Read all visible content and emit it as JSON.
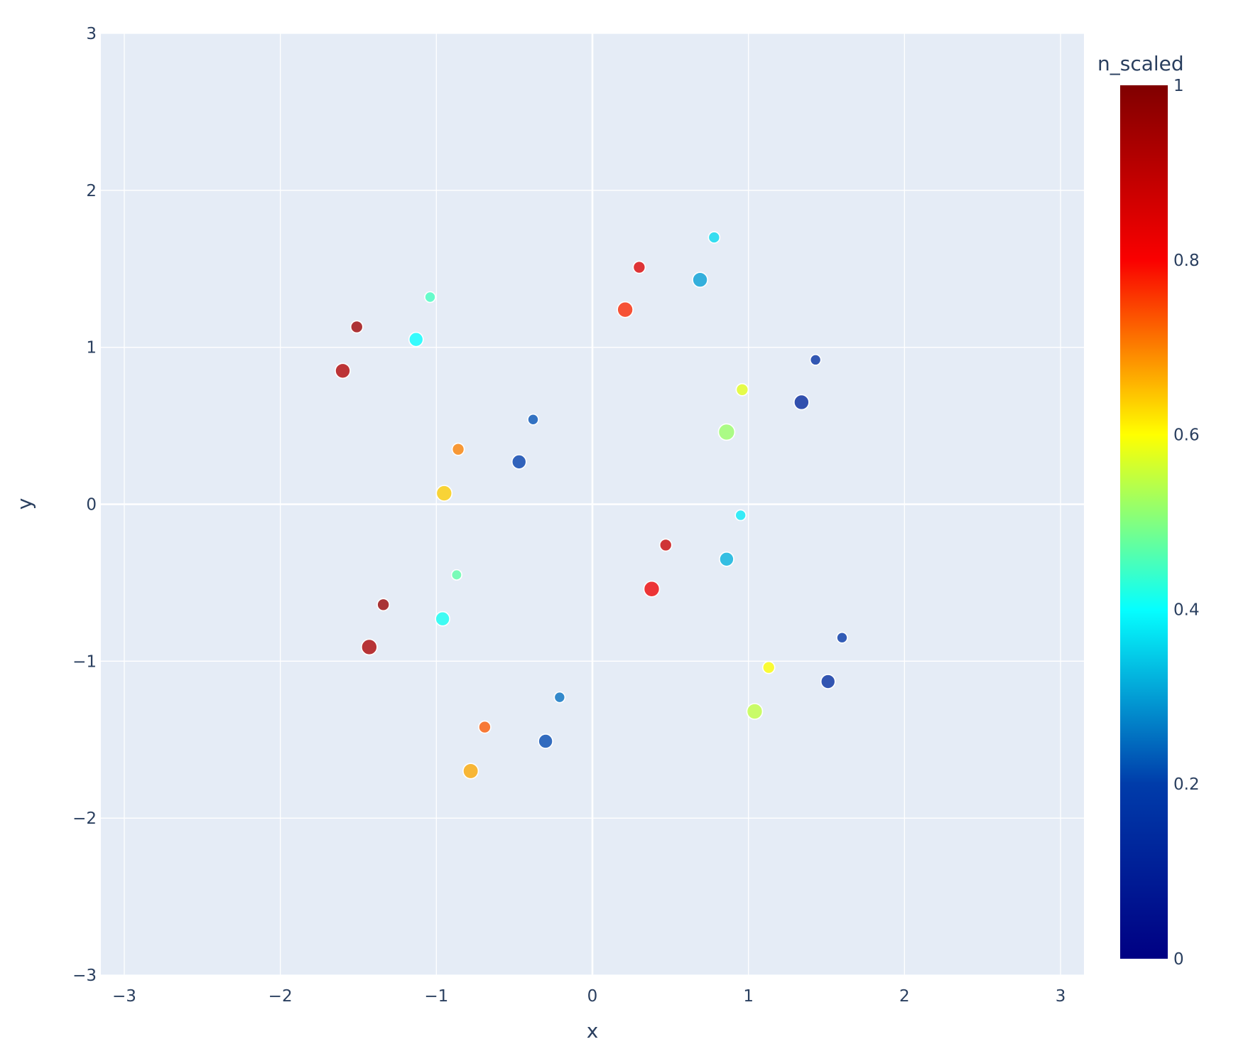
{
  "chart_data": {
    "type": "scatter",
    "xlabel": "x",
    "ylabel": "y",
    "xlim": [
      -3.15,
      3.15
    ],
    "ylim": [
      -3,
      3
    ],
    "xticks": [
      -3,
      -2,
      -1,
      0,
      1,
      2,
      3
    ],
    "yticks": [
      -3,
      -2,
      -1,
      0,
      1,
      2,
      3
    ],
    "xtick_labels": [
      "−3",
      "−2",
      "−1",
      "0",
      "1",
      "2",
      "3"
    ],
    "ytick_labels": [
      "−3",
      "−2",
      "−1",
      "0",
      "1",
      "2",
      "3"
    ],
    "grid": true,
    "colorbar": {
      "title": "n_scaled",
      "range": [
        0,
        1
      ],
      "ticks": [
        0,
        0.2,
        0.4,
        0.6,
        0.8,
        1
      ],
      "tick_labels": [
        "0",
        "0.2",
        "0.4",
        "0.6",
        "0.8",
        "1"
      ],
      "colorscale": [
        "#000083",
        "#003caa",
        "#05ffff",
        "#ffff00",
        "#fa0000",
        "#800000"
      ]
    },
    "points": [
      {
        "x": 0.78,
        "y": 1.7,
        "c": 0.36,
        "s": 0.2
      },
      {
        "x": 0.3,
        "y": 1.51,
        "c": 0.85,
        "s": 0.3
      },
      {
        "x": 0.69,
        "y": 1.43,
        "c": 0.3,
        "s": 0.7
      },
      {
        "x": 0.21,
        "y": 1.24,
        "c": 0.77,
        "s": 0.8
      },
      {
        "x": -1.04,
        "y": 1.32,
        "c": 0.45,
        "s": 0.1
      },
      {
        "x": -1.51,
        "y": 1.13,
        "c": 0.95,
        "s": 0.3
      },
      {
        "x": -1.13,
        "y": 1.05,
        "c": 0.4,
        "s": 0.6
      },
      {
        "x": -1.6,
        "y": 0.85,
        "c": 0.92,
        "s": 0.7
      },
      {
        "x": 1.43,
        "y": 0.92,
        "c": 0.15,
        "s": 0.1
      },
      {
        "x": 0.96,
        "y": 0.73,
        "c": 0.58,
        "s": 0.3
      },
      {
        "x": 1.34,
        "y": 0.65,
        "c": 0.12,
        "s": 0.7
      },
      {
        "x": 0.86,
        "y": 0.46,
        "c": 0.52,
        "s": 0.9
      },
      {
        "x": -0.38,
        "y": 0.54,
        "c": 0.22,
        "s": 0.1
      },
      {
        "x": -0.86,
        "y": 0.35,
        "c": 0.7,
        "s": 0.3
      },
      {
        "x": -0.47,
        "y": 0.27,
        "c": 0.2,
        "s": 0.6
      },
      {
        "x": -0.95,
        "y": 0.07,
        "c": 0.64,
        "s": 0.8
      },
      {
        "x": 0.95,
        "y": -0.07,
        "c": 0.38,
        "s": 0.1
      },
      {
        "x": 0.47,
        "y": -0.26,
        "c": 0.88,
        "s": 0.3
      },
      {
        "x": 0.86,
        "y": -0.35,
        "c": 0.32,
        "s": 0.6
      },
      {
        "x": 0.38,
        "y": -0.54,
        "c": 0.82,
        "s": 0.8
      },
      {
        "x": -0.87,
        "y": -0.45,
        "c": 0.47,
        "s": 0.05
      },
      {
        "x": -1.34,
        "y": -0.64,
        "c": 0.96,
        "s": 0.3
      },
      {
        "x": -0.96,
        "y": -0.73,
        "c": 0.41,
        "s": 0.6
      },
      {
        "x": -1.43,
        "y": -0.91,
        "c": 0.93,
        "s": 0.8
      },
      {
        "x": 1.6,
        "y": -0.85,
        "c": 0.17,
        "s": 0.1
      },
      {
        "x": 1.13,
        "y": -1.04,
        "c": 0.6,
        "s": 0.3
      },
      {
        "x": 1.51,
        "y": -1.13,
        "c": 0.14,
        "s": 0.6
      },
      {
        "x": 1.04,
        "y": -1.32,
        "c": 0.55,
        "s": 0.8
      },
      {
        "x": -0.21,
        "y": -1.23,
        "c": 0.25,
        "s": 0.1
      },
      {
        "x": -0.69,
        "y": -1.42,
        "c": 0.73,
        "s": 0.3
      },
      {
        "x": -0.3,
        "y": -1.51,
        "c": 0.21,
        "s": 0.6
      },
      {
        "x": -0.78,
        "y": -1.7,
        "c": 0.67,
        "s": 0.75
      }
    ]
  }
}
